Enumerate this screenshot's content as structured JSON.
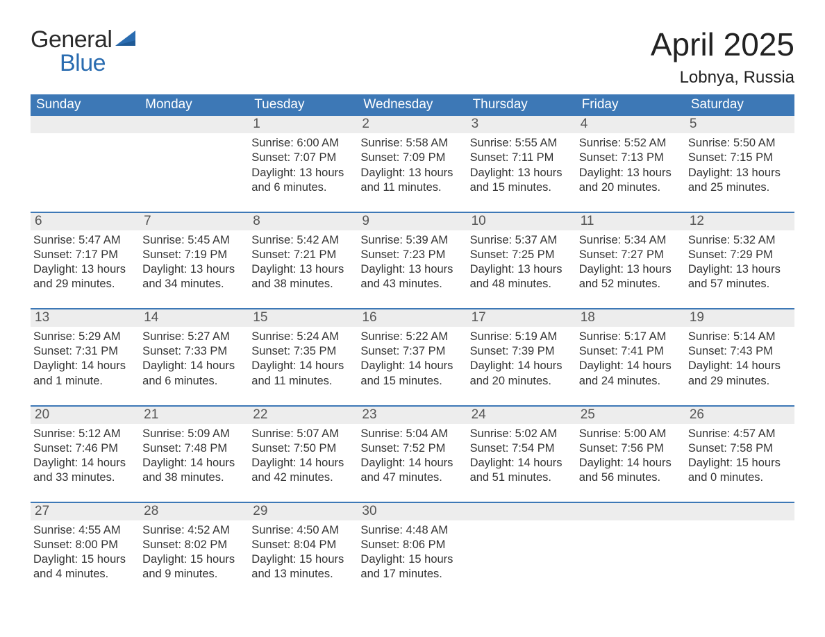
{
  "logo": {
    "line1": "General",
    "line2": "Blue",
    "sail_color": "#2a6cb0"
  },
  "title": "April 2025",
  "location": "Lobnya, Russia",
  "day_headers": [
    "Sunday",
    "Monday",
    "Tuesday",
    "Wednesday",
    "Thursday",
    "Friday",
    "Saturday"
  ],
  "colors": {
    "header_blue": "#3d78b6",
    "accent_blue": "#2a6cb0",
    "daybar_bg": "#ededed",
    "body_text": "#333333",
    "day_text": "#555555",
    "page_bg": "#ffffff"
  },
  "weeks": [
    [
      {
        "day": "",
        "text": ""
      },
      {
        "day": "",
        "text": ""
      },
      {
        "day": "1",
        "text": "Sunrise: 6:00 AM\nSunset: 7:07 PM\nDaylight: 13 hours and 6 minutes."
      },
      {
        "day": "2",
        "text": "Sunrise: 5:58 AM\nSunset: 7:09 PM\nDaylight: 13 hours and 11 minutes."
      },
      {
        "day": "3",
        "text": "Sunrise: 5:55 AM\nSunset: 7:11 PM\nDaylight: 13 hours and 15 minutes."
      },
      {
        "day": "4",
        "text": "Sunrise: 5:52 AM\nSunset: 7:13 PM\nDaylight: 13 hours and 20 minutes."
      },
      {
        "day": "5",
        "text": "Sunrise: 5:50 AM\nSunset: 7:15 PM\nDaylight: 13 hours and 25 minutes."
      }
    ],
    [
      {
        "day": "6",
        "text": "Sunrise: 5:47 AM\nSunset: 7:17 PM\nDaylight: 13 hours and 29 minutes."
      },
      {
        "day": "7",
        "text": "Sunrise: 5:45 AM\nSunset: 7:19 PM\nDaylight: 13 hours and 34 minutes."
      },
      {
        "day": "8",
        "text": "Sunrise: 5:42 AM\nSunset: 7:21 PM\nDaylight: 13 hours and 38 minutes."
      },
      {
        "day": "9",
        "text": "Sunrise: 5:39 AM\nSunset: 7:23 PM\nDaylight: 13 hours and 43 minutes."
      },
      {
        "day": "10",
        "text": "Sunrise: 5:37 AM\nSunset: 7:25 PM\nDaylight: 13 hours and 48 minutes."
      },
      {
        "day": "11",
        "text": "Sunrise: 5:34 AM\nSunset: 7:27 PM\nDaylight: 13 hours and 52 minutes."
      },
      {
        "day": "12",
        "text": "Sunrise: 5:32 AM\nSunset: 7:29 PM\nDaylight: 13 hours and 57 minutes."
      }
    ],
    [
      {
        "day": "13",
        "text": "Sunrise: 5:29 AM\nSunset: 7:31 PM\nDaylight: 14 hours and 1 minute."
      },
      {
        "day": "14",
        "text": "Sunrise: 5:27 AM\nSunset: 7:33 PM\nDaylight: 14 hours and 6 minutes."
      },
      {
        "day": "15",
        "text": "Sunrise: 5:24 AM\nSunset: 7:35 PM\nDaylight: 14 hours and 11 minutes."
      },
      {
        "day": "16",
        "text": "Sunrise: 5:22 AM\nSunset: 7:37 PM\nDaylight: 14 hours and 15 minutes."
      },
      {
        "day": "17",
        "text": "Sunrise: 5:19 AM\nSunset: 7:39 PM\nDaylight: 14 hours and 20 minutes."
      },
      {
        "day": "18",
        "text": "Sunrise: 5:17 AM\nSunset: 7:41 PM\nDaylight: 14 hours and 24 minutes."
      },
      {
        "day": "19",
        "text": "Sunrise: 5:14 AM\nSunset: 7:43 PM\nDaylight: 14 hours and 29 minutes."
      }
    ],
    [
      {
        "day": "20",
        "text": "Sunrise: 5:12 AM\nSunset: 7:46 PM\nDaylight: 14 hours and 33 minutes."
      },
      {
        "day": "21",
        "text": "Sunrise: 5:09 AM\nSunset: 7:48 PM\nDaylight: 14 hours and 38 minutes."
      },
      {
        "day": "22",
        "text": "Sunrise: 5:07 AM\nSunset: 7:50 PM\nDaylight: 14 hours and 42 minutes."
      },
      {
        "day": "23",
        "text": "Sunrise: 5:04 AM\nSunset: 7:52 PM\nDaylight: 14 hours and 47 minutes."
      },
      {
        "day": "24",
        "text": "Sunrise: 5:02 AM\nSunset: 7:54 PM\nDaylight: 14 hours and 51 minutes."
      },
      {
        "day": "25",
        "text": "Sunrise: 5:00 AM\nSunset: 7:56 PM\nDaylight: 14 hours and 56 minutes."
      },
      {
        "day": "26",
        "text": "Sunrise: 4:57 AM\nSunset: 7:58 PM\nDaylight: 15 hours and 0 minutes."
      }
    ],
    [
      {
        "day": "27",
        "text": "Sunrise: 4:55 AM\nSunset: 8:00 PM\nDaylight: 15 hours and 4 minutes."
      },
      {
        "day": "28",
        "text": "Sunrise: 4:52 AM\nSunset: 8:02 PM\nDaylight: 15 hours and 9 minutes."
      },
      {
        "day": "29",
        "text": "Sunrise: 4:50 AM\nSunset: 8:04 PM\nDaylight: 15 hours and 13 minutes."
      },
      {
        "day": "30",
        "text": "Sunrise: 4:48 AM\nSunset: 8:06 PM\nDaylight: 15 hours and 17 minutes."
      },
      {
        "day": "",
        "text": ""
      },
      {
        "day": "",
        "text": ""
      },
      {
        "day": "",
        "text": ""
      }
    ]
  ]
}
